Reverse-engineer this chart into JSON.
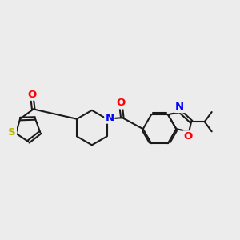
{
  "background_color": "#ececec",
  "bond_color": "#1a1a1a",
  "bond_width": 1.5,
  "dbo": 0.055,
  "atom_colors": {
    "S": "#b8b800",
    "N": "#0000ff",
    "O": "#ff0000",
    "C": "#1a1a1a"
  },
  "font_size": 8.5,
  "fig_size": [
    3.0,
    3.0
  ],
  "dpi": 100
}
